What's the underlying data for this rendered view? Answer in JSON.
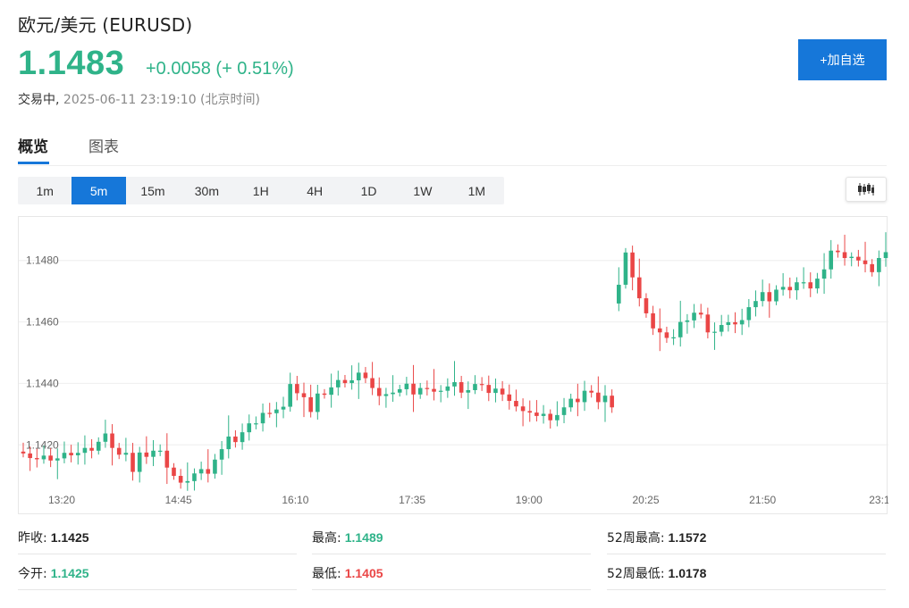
{
  "header": {
    "title": "欧元/美元 (EURUSD)",
    "price": "1.1483",
    "change": "+0.0058 (+ 0.51%)",
    "status_label": "交易中,",
    "timestamp": "2025-06-11 23:19:10 (北京时间)",
    "add_button": "+加自选"
  },
  "tabs": [
    {
      "label": "概览",
      "active": true
    },
    {
      "label": "图表",
      "active": false
    }
  ],
  "intervals": {
    "items": [
      "1m",
      "5m",
      "15m",
      "30m",
      "1H",
      "4H",
      "1D",
      "1W",
      "1M"
    ],
    "selected": "5m"
  },
  "chart_type_icon": "candlestick-icon",
  "colors": {
    "up": "#2fb389",
    "down": "#ea4646",
    "accent": "#1677d9"
  },
  "chart_data": {
    "type": "candlestick",
    "x_ticks": [
      "13:20",
      "14:45",
      "16:10",
      "17:35",
      "19:00",
      "20:25",
      "21:50",
      "23:1"
    ],
    "y_ticks": [
      "1.1420",
      "1.1440",
      "1.1460",
      "1.1480"
    ],
    "ylim": [
      1.1407,
      1.1493
    ],
    "interval": "5m",
    "close": [
      1.14172,
      1.14157,
      1.14153,
      1.14165,
      1.14149,
      1.14156,
      1.14174,
      1.14166,
      1.14174,
      1.1419,
      1.14181,
      1.1421,
      1.14237,
      1.1419,
      1.14168,
      1.14174,
      1.14112,
      1.14175,
      1.14161,
      1.14181,
      1.14181,
      1.14126,
      1.14099,
      1.14077,
      1.14082,
      1.14107,
      1.14121,
      1.14106,
      1.14152,
      1.14186,
      1.14227,
      1.14209,
      1.14241,
      1.1427,
      1.1427,
      1.14304,
      1.14303,
      1.14315,
      1.14324,
      1.14398,
      1.14368,
      1.14355,
      1.14307,
      1.14367,
      1.14363,
      1.14387,
      1.14411,
      1.14401,
      1.1441,
      1.14435,
      1.14417,
      1.14385,
      1.14359,
      1.14365,
      1.1437,
      1.14381,
      1.14399,
      1.14364,
      1.14385,
      1.14382,
      1.14373,
      1.14376,
      1.1439,
      1.14404,
      1.1437,
      1.14378,
      1.14398,
      1.14395,
      1.14369,
      1.14383,
      1.14364,
      1.14343,
      1.14325,
      1.1431,
      1.14305,
      1.14294,
      1.14301,
      1.1428,
      1.14297,
      1.14322,
      1.1435,
      1.14339,
      1.14376,
      1.1437,
      1.14339,
      1.1436,
      1.14322,
      1.14721,
      1.14826,
      1.14745,
      1.14677,
      1.14628,
      1.14579,
      1.14566,
      1.14548,
      1.1455,
      1.146,
      1.14605,
      1.1463,
      1.14624,
      1.14566,
      1.14568,
      1.1459,
      1.14599,
      1.14592,
      1.14606,
      1.14648,
      1.14668,
      1.14697,
      1.14667,
      1.14705,
      1.14714,
      1.14703,
      1.14729,
      1.14729,
      1.14709,
      1.14741,
      1.14771,
      1.14832,
      1.14827,
      1.14808,
      1.14812,
      1.148,
      1.14788,
      1.14762,
      1.14808,
      1.14827
    ]
  },
  "stats": [
    {
      "label": "昨收:",
      "value": "1.1425",
      "color": "dark"
    },
    {
      "label": "最高:",
      "value": "1.1489",
      "color": "green"
    },
    {
      "label": "52周最高:",
      "value": "1.1572",
      "color": "dark"
    },
    {
      "label": "今开:",
      "value": "1.1425",
      "color": "green"
    },
    {
      "label": "最低:",
      "value": "1.1405",
      "color": "red"
    },
    {
      "label": "52周最低:",
      "value": "1.0178",
      "color": "dark"
    }
  ]
}
